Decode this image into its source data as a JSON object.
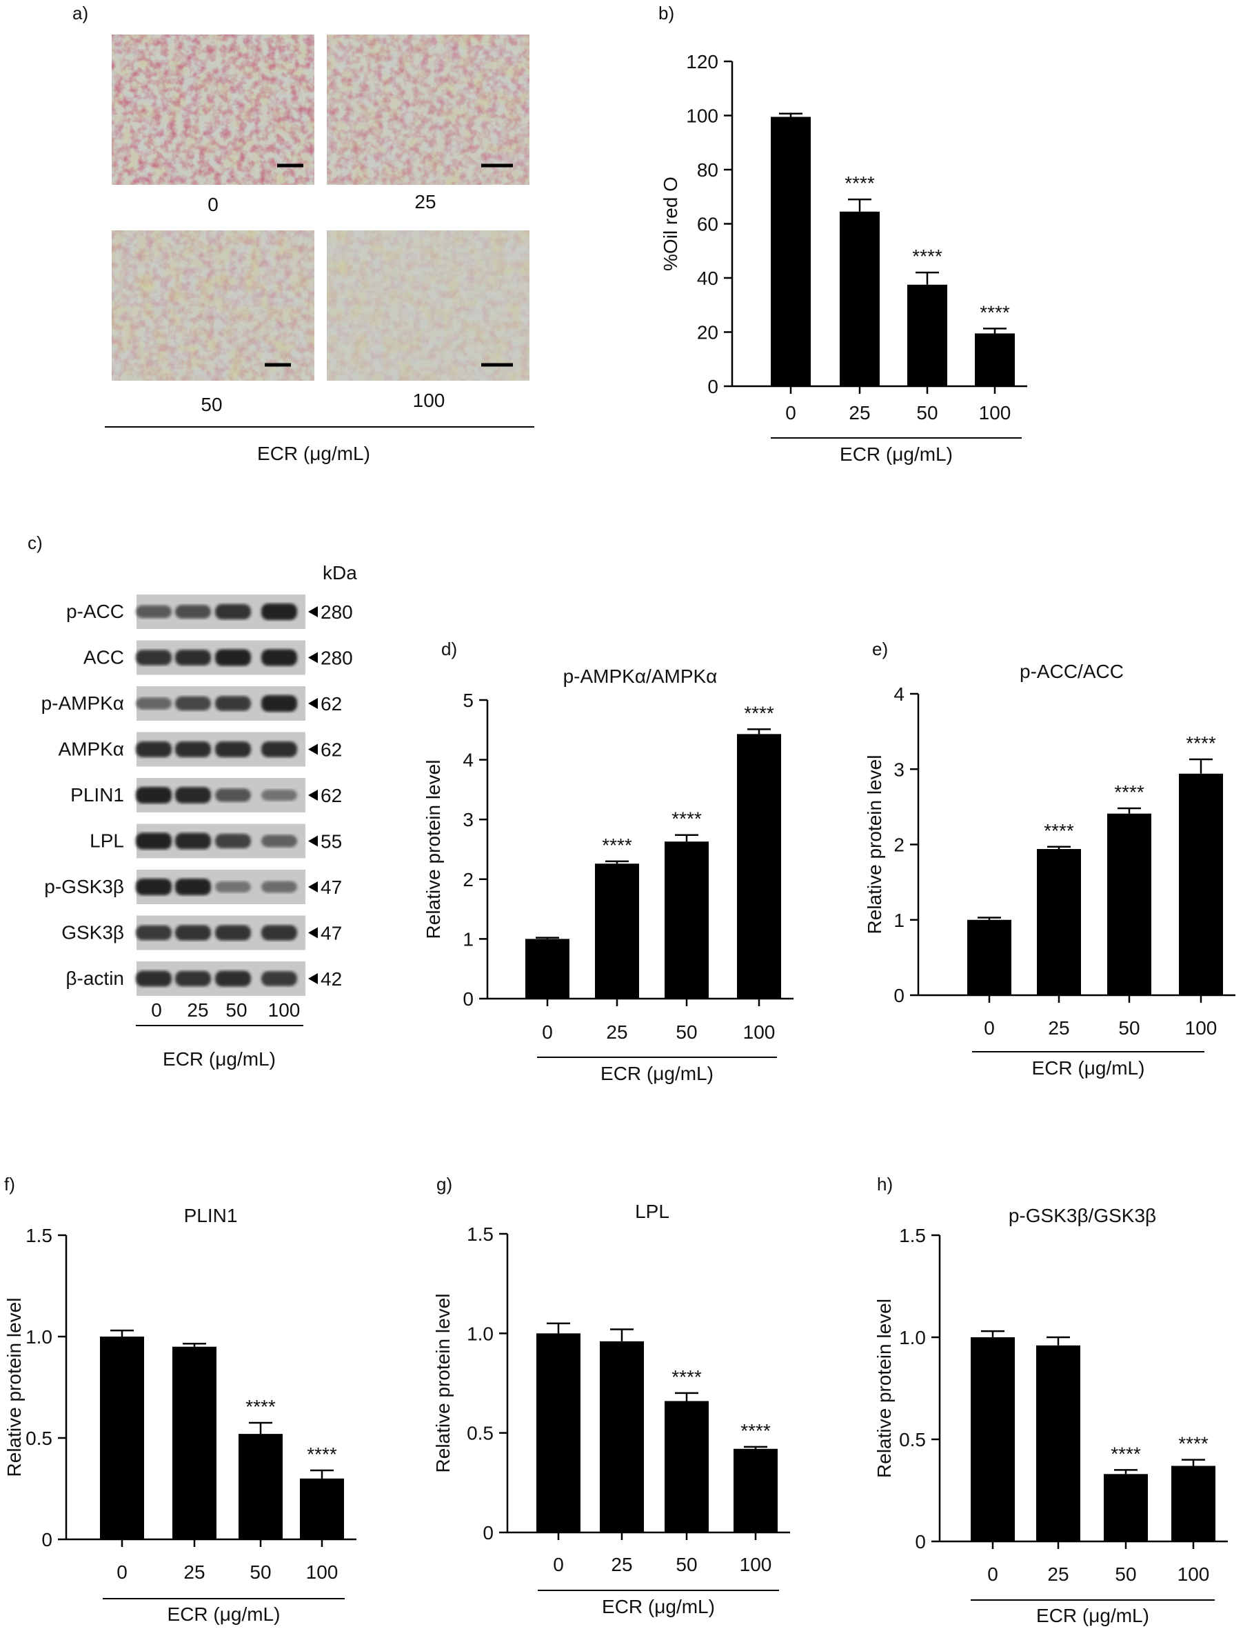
{
  "colors": {
    "bar": "#000000",
    "axis": "#000000",
    "micro_bg": "#c9ccc4",
    "micro_stain": "#8a2a3a",
    "blot_bg": "#c8c8c8",
    "band": "#222222"
  },
  "panel_a": {
    "label": "a)",
    "image_labels": [
      "0",
      "25",
      "50",
      "100"
    ],
    "group_label": "ECR (μg/mL)"
  },
  "panel_c": {
    "label": "c)",
    "unit_header": "kDa",
    "rows": [
      {
        "name": "p-ACC",
        "kda": "280",
        "intensity": [
          0.55,
          0.65,
          0.85,
          1.0
        ]
      },
      {
        "name": "ACC",
        "kda": "280",
        "intensity": [
          0.85,
          0.9,
          1.0,
          1.0
        ]
      },
      {
        "name": "p-AMPKα",
        "kda": "62",
        "intensity": [
          0.45,
          0.7,
          0.8,
          1.0
        ]
      },
      {
        "name": "AMPKα",
        "kda": "62",
        "intensity": [
          0.9,
          0.9,
          0.9,
          0.9
        ]
      },
      {
        "name": "PLIN1",
        "kda": "62",
        "intensity": [
          1.0,
          0.95,
          0.6,
          0.35
        ]
      },
      {
        "name": "LPL",
        "kda": "55",
        "intensity": [
          1.0,
          0.95,
          0.75,
          0.5
        ]
      },
      {
        "name": "p-GSK3β",
        "kda": "47",
        "intensity": [
          1.0,
          1.0,
          0.35,
          0.4
        ]
      },
      {
        "name": "GSK3β",
        "kda": "47",
        "intensity": [
          0.8,
          0.85,
          0.85,
          0.85
        ]
      },
      {
        "name": "β-actin",
        "kda": "42",
        "intensity": [
          0.9,
          0.85,
          0.9,
          0.8
        ]
      }
    ],
    "lane_labels": [
      "0",
      "25",
      "50",
      "100"
    ],
    "group_label": "ECR (μg/mL)"
  },
  "chart_data": [
    {
      "id": "b",
      "label": "b)",
      "type": "bar",
      "title": "",
      "ylabel": "%Oil red O",
      "xlabel": "ECR (μg/mL)",
      "categories": [
        "0",
        "25",
        "50",
        "100"
      ],
      "values": [
        99.5,
        64.5,
        37.5,
        19.5
      ],
      "errors": [
        1.2,
        4.5,
        4.5,
        1.8
      ],
      "annotations": [
        "",
        "****",
        "****",
        "****"
      ],
      "ylim": [
        0,
        120
      ],
      "yticks": [
        0,
        20,
        40,
        60,
        80,
        100,
        120
      ]
    },
    {
      "id": "d",
      "label": "d)",
      "type": "bar",
      "title": "p-AMPKα/AMPKα",
      "ylabel": "Relative protein level",
      "xlabel": "ECR (μg/mL)",
      "categories": [
        "0",
        "25",
        "50",
        "100"
      ],
      "values": [
        1.0,
        2.26,
        2.63,
        4.43
      ],
      "errors": [
        0.02,
        0.04,
        0.11,
        0.08
      ],
      "annotations": [
        "",
        "****",
        "****",
        "****"
      ],
      "ylim": [
        0,
        5
      ],
      "yticks": [
        0,
        1,
        2,
        3,
        4,
        5
      ]
    },
    {
      "id": "e",
      "label": "e)",
      "type": "bar",
      "title": "p-ACC/ACC",
      "ylabel": "Relative protein level",
      "xlabel": "ECR (μg/mL)",
      "categories": [
        "0",
        "25",
        "50",
        "100"
      ],
      "values": [
        1.0,
        1.94,
        2.41,
        2.94
      ],
      "errors": [
        0.03,
        0.03,
        0.07,
        0.19
      ],
      "annotations": [
        "",
        "****",
        "****",
        "****"
      ],
      "ylim": [
        0,
        4
      ],
      "yticks": [
        0,
        1,
        2,
        3,
        4
      ]
    },
    {
      "id": "f",
      "label": "f)",
      "type": "bar",
      "title": "PLIN1",
      "ylabel": "Relative protein level",
      "xlabel": "ECR (μg/mL)",
      "categories": [
        "0",
        "25",
        "50",
        "100"
      ],
      "values": [
        1.0,
        0.95,
        0.52,
        0.3
      ],
      "errors": [
        0.03,
        0.015,
        0.055,
        0.04
      ],
      "annotations": [
        "",
        "",
        "****",
        "****"
      ],
      "ylim": [
        0,
        1.5
      ],
      "yticks": [
        0,
        0.5,
        1.0,
        1.5
      ],
      "ytick_labels": [
        "0",
        "0.5",
        "1.0",
        "1.5"
      ]
    },
    {
      "id": "g",
      "label": "g)",
      "type": "bar",
      "title": "LPL",
      "ylabel": "Relative protein level",
      "xlabel": "ECR (μg/mL)",
      "categories": [
        "0",
        "25",
        "50",
        "100"
      ],
      "values": [
        1.0,
        0.96,
        0.66,
        0.42
      ],
      "errors": [
        0.05,
        0.06,
        0.04,
        0.01
      ],
      "annotations": [
        "",
        "",
        "****",
        "****"
      ],
      "ylim": [
        0,
        1.5
      ],
      "yticks": [
        0,
        0.5,
        1.0,
        1.5
      ],
      "ytick_labels": [
        "0",
        "0.5",
        "1.0",
        "1.5"
      ]
    },
    {
      "id": "h",
      "label": "h)",
      "type": "bar",
      "title": "p-GSK3β/GSK3β",
      "ylabel": "Relative protein level",
      "xlabel": "ECR (μg/mL)",
      "categories": [
        "0",
        "25",
        "50",
        "100"
      ],
      "values": [
        1.0,
        0.96,
        0.33,
        0.37
      ],
      "errors": [
        0.03,
        0.04,
        0.02,
        0.03
      ],
      "annotations": [
        "",
        "",
        "****",
        "****"
      ],
      "ylim": [
        0,
        1.5
      ],
      "yticks": [
        0,
        0.5,
        1.0,
        1.5
      ],
      "ytick_labels": [
        "0",
        "0.5",
        "1.0",
        "1.5"
      ]
    }
  ]
}
